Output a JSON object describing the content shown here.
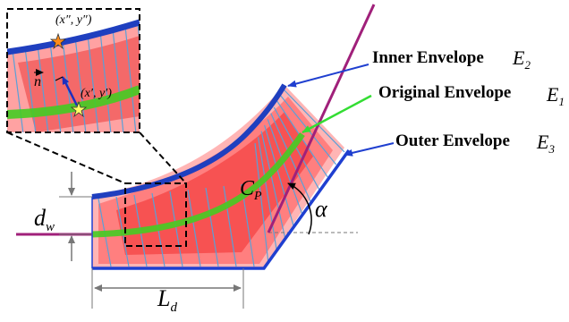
{
  "labels": {
    "inner": "Inner Envelope",
    "inner_sym": "E",
    "inner_sub": "2",
    "original": "Original Envelope",
    "original_sym": "E",
    "original_sub": "1",
    "outer": "Outer Envelope",
    "outer_sym": "E",
    "outer_sub": "3",
    "cp": "C",
    "cp_sub": "P",
    "alpha": "α",
    "dw": "d",
    "dw_sub": "w",
    "ld": "L",
    "ld_sub": "d",
    "pt_top": "(x″, y″)",
    "pt_mid": "(x′, y′)",
    "normal": "n"
  },
  "colors": {
    "inner_envelope": "#1f3fbf",
    "outer_envelope": "#1f3fd0",
    "original_envelope": "#33dd33",
    "path": "#a0207a",
    "swept_fill": "#ff2020",
    "tool_lines": "#5aa0d8",
    "annotation": "#000000",
    "dim_lines": "#777777"
  }
}
